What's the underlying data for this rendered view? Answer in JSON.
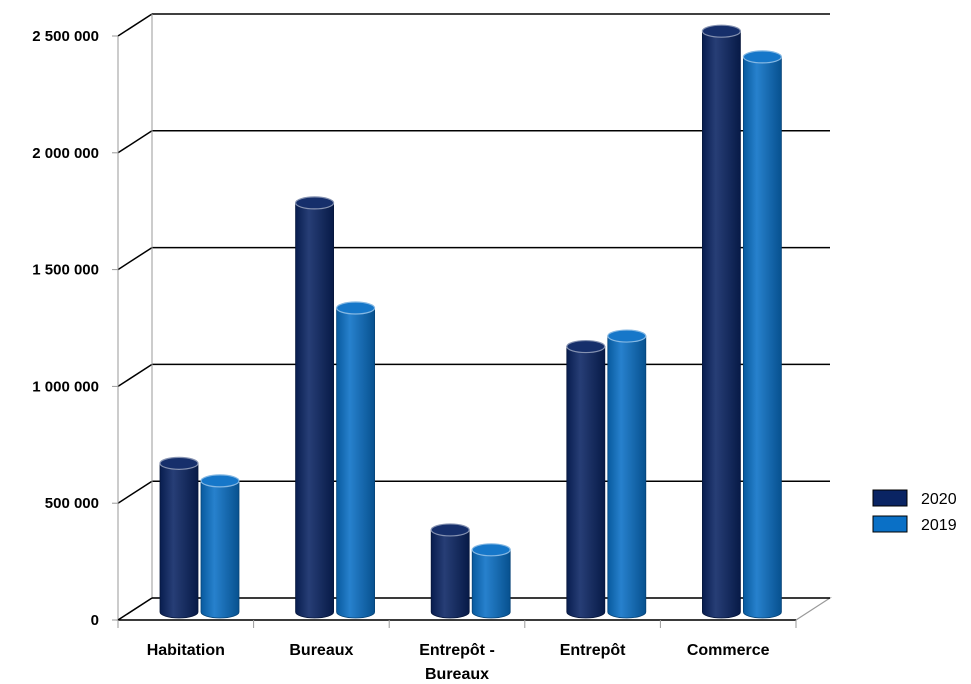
{
  "chart_data": {
    "type": "bar",
    "title": "",
    "xlabel": "",
    "ylabel": "",
    "categories": [
      "Habitation",
      "Bureaux",
      "Entrepôt - Bureaux",
      "Entrepôt",
      "Commerce"
    ],
    "category_lines": [
      [
        "Habitation"
      ],
      [
        "Bureaux"
      ],
      [
        "Entrepôt -",
        "Bureaux"
      ],
      [
        "Entrepôt"
      ],
      [
        "Commerce"
      ]
    ],
    "series": [
      {
        "name": "2020",
        "color": "#0a2463",
        "values": [
          650000,
          1765000,
          365000,
          1150000,
          2500000
        ]
      },
      {
        "name": "2019",
        "color": "#0a70c6",
        "values": [
          575000,
          1315000,
          280000,
          1195000,
          2390000
        ]
      }
    ],
    "ylim": [
      0,
      2500000
    ],
    "yticks": [
      0,
      500000,
      1000000,
      1500000,
      2000000,
      2500000
    ],
    "ytick_labels": [
      "0",
      "500 000",
      "1 000 000",
      "1 500 000",
      "2 000 000",
      "2 500 000"
    ],
    "grid": true,
    "legend_position": "right"
  }
}
